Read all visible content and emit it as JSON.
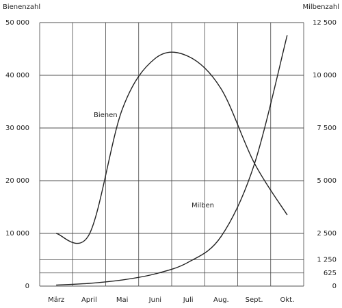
{
  "chart_data": {
    "type": "line",
    "y_label": "Bienenzahl",
    "y2_label": "Milbenzahl",
    "categories": [
      "März",
      "April",
      "Mai",
      "Juni",
      "Juli",
      "Aug.",
      "Sept.",
      "Okt."
    ],
    "series": [
      {
        "name": "Bienen",
        "color": "#222222",
        "values": [
          10000,
          9800,
          33500,
          43200,
          43600,
          37400,
          23400,
          13500
        ]
      },
      {
        "name": "Milben",
        "color": "#222222",
        "axis": "y2",
        "values": [
          50,
          130,
          290,
          580,
          1130,
          2360,
          5760,
          11900
        ]
      }
    ],
    "ylim": [
      0,
      50000
    ],
    "yticks": [
      0,
      {
        "value": 10000,
        "label": "10 000"
      },
      {
        "value": 20000,
        "label": "20 000"
      },
      {
        "value": 30000,
        "label": "30 000"
      },
      {
        "value": 40000,
        "label": "40 000"
      },
      {
        "value": 50000,
        "label": "50 000"
      }
    ],
    "y2lim": [
      0,
      12500
    ],
    "y2ticks": [
      0,
      625,
      {
        "value": 1250,
        "label": "1 250"
      },
      {
        "value": 2500,
        "label": "2 500"
      },
      {
        "value": 5000,
        "label": "5 000"
      },
      {
        "value": 7500,
        "label": "7 500"
      },
      {
        "value": 10000,
        "label": "10 000"
      },
      {
        "value": 12500,
        "label": "12 500"
      }
    ],
    "grid": true
  }
}
